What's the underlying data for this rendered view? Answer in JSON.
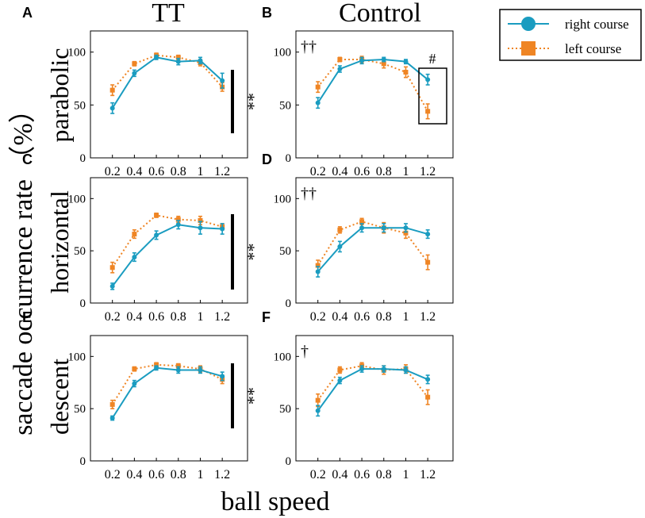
{
  "figure": {
    "column_titles": [
      "TT",
      "Control"
    ],
    "row_labels": [
      "parabolic",
      "horizontal",
      "descent"
    ],
    "y_label": "saccade occurrence rate （%）",
    "x_label": "ball speed"
  },
  "legend": {
    "entries": [
      {
        "name": "right course",
        "color": "#1a9cc0",
        "marker": "circle",
        "line": "solid"
      },
      {
        "name": "left course",
        "color": "#ef8524",
        "marker": "square",
        "line": "dotted"
      }
    ]
  },
  "chart_data": [
    {
      "id": "A",
      "type": "line",
      "title": "TT",
      "row": "parabolic",
      "categories": [
        "0.2",
        "0.4",
        "0.6",
        "0.8",
        "1",
        "1.2"
      ],
      "ylim": [
        0,
        120
      ],
      "yticks": [
        "0",
        "50",
        "100"
      ],
      "series": [
        {
          "name": "right course",
          "values": [
            47,
            80,
            95,
            91,
            92,
            73
          ],
          "errors": [
            5,
            3,
            2,
            3,
            3,
            7
          ]
        },
        {
          "name": "left course",
          "values": [
            64,
            89,
            97,
            95,
            90,
            67
          ],
          "errors": [
            5,
            2,
            2,
            2,
            3,
            4
          ]
        }
      ],
      "annotations": {
        "dagger": "",
        "significance": "**",
        "box": false,
        "hash": ""
      }
    },
    {
      "id": "B",
      "type": "line",
      "title": "Control",
      "row": "parabolic",
      "categories": [
        "0.2",
        "0.4",
        "0.6",
        "0.8",
        "1",
        "1.2"
      ],
      "ylim": [
        0,
        120
      ],
      "yticks": [
        "0",
        "50",
        "100"
      ],
      "series": [
        {
          "name": "right course",
          "values": [
            52,
            84,
            92,
            93,
            91,
            74
          ],
          "errors": [
            5,
            3,
            3,
            2,
            2,
            5
          ]
        },
        {
          "name": "left course",
          "values": [
            67,
            93,
            93,
            89,
            81,
            44
          ],
          "errors": [
            5,
            2,
            3,
            4,
            5,
            7
          ]
        }
      ],
      "annotations": {
        "dagger": "††",
        "significance": "",
        "box": true,
        "hash": "#"
      }
    },
    {
      "id": "C",
      "type": "line",
      "title": "TT",
      "row": "horizontal",
      "categories": [
        "0.2",
        "0.4",
        "0.6",
        "0.8",
        "1",
        "1.2"
      ],
      "ylim": [
        0,
        120
      ],
      "yticks": [
        "0",
        "50",
        "100"
      ],
      "series": [
        {
          "name": "right course",
          "values": [
            16,
            44,
            65,
            75,
            72,
            71
          ],
          "errors": [
            3,
            4,
            4,
            4,
            6,
            5
          ]
        },
        {
          "name": "left course",
          "values": [
            34,
            66,
            84,
            80,
            79,
            73
          ],
          "errors": [
            5,
            4,
            2,
            3,
            4,
            3
          ]
        }
      ],
      "annotations": {
        "dagger": "",
        "significance": "**",
        "box": false,
        "hash": ""
      }
    },
    {
      "id": "D",
      "type": "line",
      "title": "Control",
      "row": "horizontal",
      "categories": [
        "0.2",
        "0.4",
        "0.6",
        "0.8",
        "1",
        "1.2"
      ],
      "ylim": [
        0,
        120
      ],
      "yticks": [
        "0",
        "50",
        "100"
      ],
      "series": [
        {
          "name": "right course",
          "values": [
            30,
            54,
            72,
            72,
            72,
            66
          ],
          "errors": [
            5,
            5,
            4,
            4,
            4,
            4
          ]
        },
        {
          "name": "left course",
          "values": [
            36,
            70,
            78,
            72,
            67,
            39
          ],
          "errors": [
            5,
            3,
            3,
            5,
            5,
            7
          ]
        }
      ],
      "annotations": {
        "dagger": "††",
        "significance": "",
        "box": false,
        "hash": ""
      }
    },
    {
      "id": "E",
      "type": "line",
      "title": "TT",
      "row": "descent",
      "categories": [
        "0.2",
        "0.4",
        "0.6",
        "0.8",
        "1",
        "1.2"
      ],
      "ylim": [
        0,
        120
      ],
      "yticks": [
        "0",
        "50",
        "100"
      ],
      "series": [
        {
          "name": "right course",
          "values": [
            41,
            74,
            89,
            87,
            87,
            81
          ],
          "errors": [
            2,
            3,
            2,
            3,
            3,
            4
          ]
        },
        {
          "name": "left course",
          "values": [
            54,
            88,
            92,
            91,
            88,
            78
          ],
          "errors": [
            4,
            2,
            2,
            2,
            3,
            4
          ]
        }
      ],
      "annotations": {
        "dagger": "",
        "significance": "**",
        "box": false,
        "hash": ""
      }
    },
    {
      "id": "F",
      "type": "line",
      "title": "Control",
      "row": "descent",
      "categories": [
        "0.2",
        "0.4",
        "0.6",
        "0.8",
        "1",
        "1.2"
      ],
      "ylim": [
        0,
        120
      ],
      "yticks": [
        "0",
        "50",
        "100"
      ],
      "series": [
        {
          "name": "right course",
          "values": [
            48,
            77,
            88,
            88,
            87,
            78
          ],
          "errors": [
            5,
            3,
            3,
            3,
            3,
            4
          ]
        },
        {
          "name": "left course",
          "values": [
            58,
            87,
            91,
            87,
            88,
            61
          ],
          "errors": [
            6,
            3,
            3,
            4,
            4,
            7
          ]
        }
      ],
      "annotations": {
        "dagger": "†",
        "significance": "",
        "box": false,
        "hash": ""
      }
    }
  ]
}
